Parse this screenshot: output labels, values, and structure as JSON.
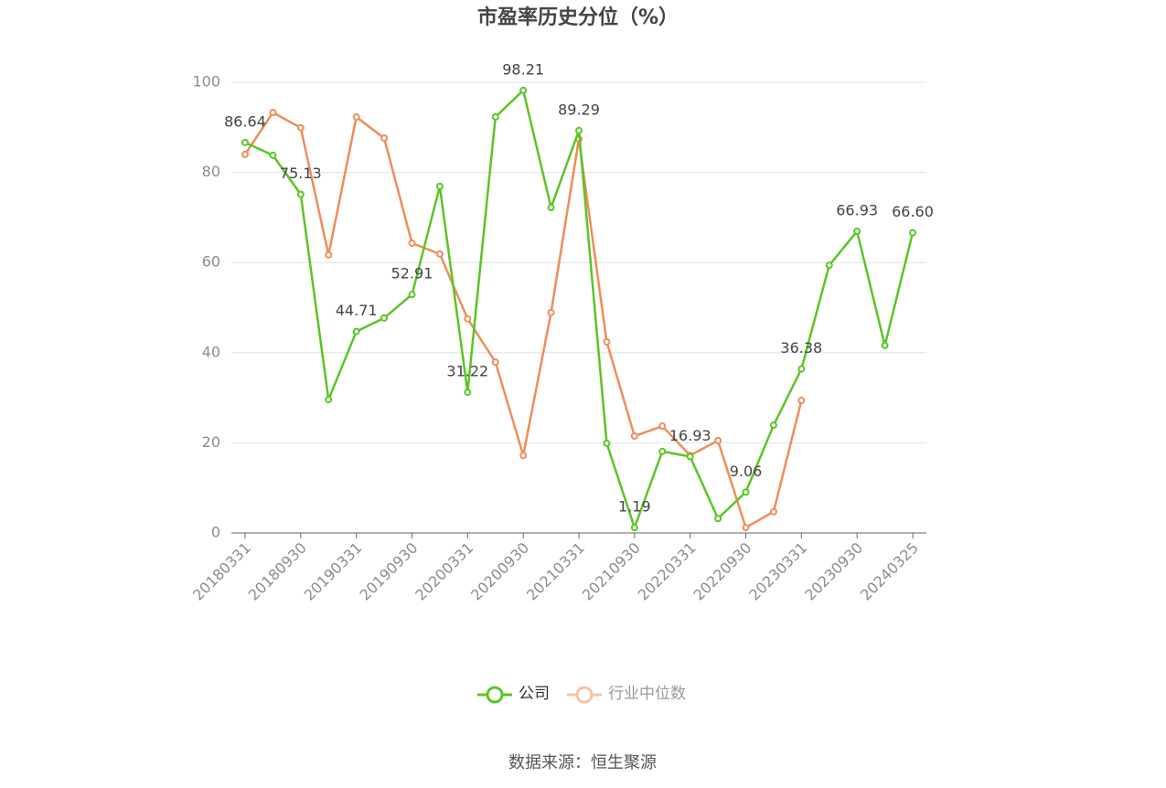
{
  "chart_data": {
    "type": "line",
    "title": "市盈率历史分位（%）",
    "categories": [
      "20180331",
      null,
      "20180930",
      null,
      "20190331",
      null,
      "20190930",
      null,
      "20200331",
      null,
      "20200930",
      null,
      "20210331",
      null,
      "20210930",
      null,
      "20220331",
      null,
      "20220930",
      null,
      "20230331",
      null,
      "20230930",
      null,
      "20240325"
    ],
    "series": [
      {
        "name": "公司",
        "color": "#5ac525",
        "values": [
          86.64,
          83.8,
          75.13,
          29.6,
          44.71,
          47.7,
          52.91,
          76.9,
          31.22,
          92.3,
          98.21,
          72.2,
          89.29,
          19.9,
          1.19,
          18.1,
          16.93,
          3.2,
          9.06,
          23.9,
          36.38,
          59.4,
          66.93,
          41.6,
          66.6
        ],
        "value_labels": [
          "86.64",
          null,
          "75.13",
          null,
          "44.71",
          null,
          "52.91",
          null,
          "31.22",
          null,
          "98.21",
          null,
          "89.29",
          null,
          "1.19",
          null,
          "16.93",
          null,
          "9.06",
          null,
          "36.38",
          null,
          "66.93",
          null,
          "66.60"
        ]
      },
      {
        "name": "行业中位数",
        "color": "#f08c5a",
        "values": [
          84.0,
          93.3,
          89.9,
          61.7,
          92.3,
          87.6,
          64.3,
          61.9,
          47.5,
          37.9,
          17.2,
          48.9,
          87.4,
          42.4,
          21.5,
          23.7,
          17.2,
          20.5,
          1.2,
          4.7,
          29.4,
          null,
          null,
          null,
          null
        ]
      }
    ],
    "ylim": [
      0,
      100
    ],
    "yticks": [
      0,
      20,
      40,
      60,
      80,
      100
    ],
    "grid": true,
    "source": "数据来源：恒生聚源"
  }
}
